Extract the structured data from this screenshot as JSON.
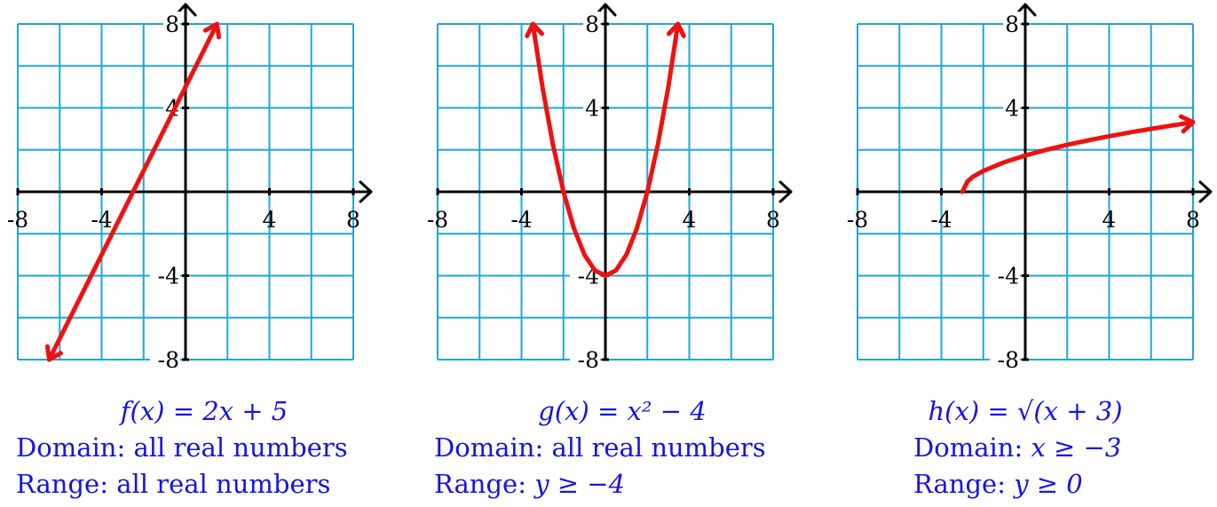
{
  "colors": {
    "grid": "#1ea7d6",
    "axis": "#000000",
    "curve": "#ee1111",
    "caption": "#1414e6",
    "background": "#ffffff"
  },
  "chart_data": [
    {
      "type": "line",
      "title": "f(x) = 2x + 5",
      "domain_label": "Domain:",
      "domain_value": "all real numbers",
      "range_label": "Range:",
      "range_value": "all real numbers",
      "xlim": [
        -8,
        8
      ],
      "ylim": [
        -8,
        8
      ],
      "grid_step": 2,
      "x_ticks": [
        -8,
        -4,
        4,
        8
      ],
      "x_tick_labels": [
        "-8",
        "-4",
        "4",
        "8"
      ],
      "y_ticks": [
        -8,
        -4,
        4,
        8
      ],
      "y_tick_labels": [
        "-8",
        "-4",
        "4",
        "8"
      ],
      "grid": true,
      "series": [
        {
          "x": [
            -6.5,
            -4,
            -2.5,
            0,
            1.5
          ],
          "y": [
            -8,
            -3,
            0,
            5,
            8
          ],
          "start_arrow": true,
          "end_arrow": true
        }
      ]
    },
    {
      "type": "line",
      "title": "g(x) = x² − 4",
      "domain_label": "Domain:",
      "domain_value": "all real numbers",
      "range_label": "Range:",
      "range_value": "y ≥ −4",
      "xlim": [
        -8,
        8
      ],
      "ylim": [
        -8,
        8
      ],
      "grid_step": 2,
      "x_ticks": [
        -8,
        -4,
        4,
        8
      ],
      "x_tick_labels": [
        "-8",
        "-4",
        "4",
        "8"
      ],
      "y_ticks": [
        -8,
        -4,
        4,
        8
      ],
      "y_tick_labels": [
        "-8",
        "-4",
        "4",
        "8"
      ],
      "grid": true,
      "series": [
        {
          "x": [
            -3.46,
            -3,
            -2.5,
            -2,
            -1.5,
            -1,
            -0.5,
            0,
            0.5,
            1,
            1.5,
            2,
            2.5,
            3,
            3.46
          ],
          "y": [
            8,
            5,
            2.25,
            0,
            -1.75,
            -3,
            -3.75,
            -4,
            -3.75,
            -3,
            -1.75,
            0,
            2.25,
            5,
            8
          ],
          "start_arrow": true,
          "end_arrow": true
        }
      ]
    },
    {
      "type": "line",
      "title": "h(x) = √(x + 3)",
      "domain_label": "Domain:",
      "domain_value": "x ≥ −3",
      "range_label": "Range:",
      "range_value": "y ≥ 0",
      "xlim": [
        -8,
        8
      ],
      "ylim": [
        -8,
        8
      ],
      "grid_step": 2,
      "x_ticks": [
        -8,
        -4,
        4,
        8
      ],
      "x_tick_labels": [
        "-8",
        "-4",
        "4",
        "8"
      ],
      "y_ticks": [
        -8,
        -4,
        4,
        8
      ],
      "y_tick_labels": [
        "-8",
        "-4",
        "4",
        "8"
      ],
      "grid": true,
      "series": [
        {
          "x": [
            -3,
            -2.75,
            -2.5,
            -2,
            -1,
            0,
            1,
            2,
            3,
            4,
            5,
            6,
            7,
            8
          ],
          "y": [
            0,
            0.5,
            0.71,
            1,
            1.41,
            1.73,
            2,
            2.24,
            2.45,
            2.65,
            2.83,
            3,
            3.16,
            3.32
          ],
          "start_arrow": false,
          "end_arrow": true
        }
      ]
    }
  ]
}
